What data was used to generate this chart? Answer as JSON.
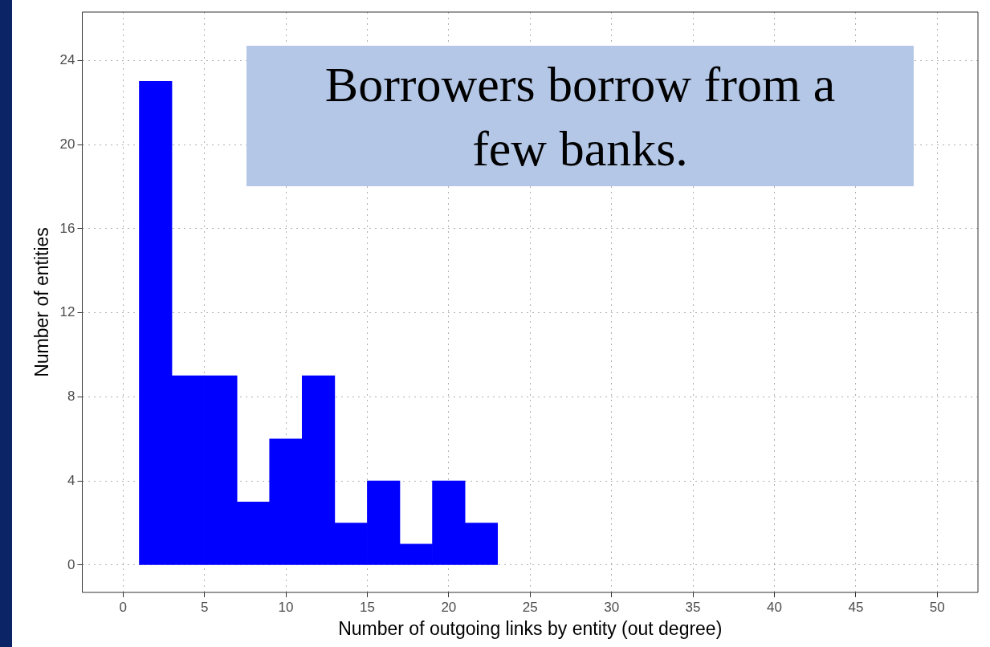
{
  "chart_data": {
    "type": "histogram",
    "xlabel": "Number of outgoing links by entity (out degree)",
    "ylabel": "Number of entities",
    "bins": [
      1,
      3,
      5,
      7,
      9,
      11,
      13,
      15,
      17,
      19,
      21,
      23
    ],
    "values": [
      23,
      9,
      9,
      3,
      6,
      9,
      2,
      4,
      1,
      4,
      2
    ],
    "color": "#0000ff",
    "xlim": [
      -2.5,
      52.5
    ],
    "xticks": [
      0,
      5,
      10,
      15,
      20,
      25,
      30,
      35,
      40,
      45,
      50
    ],
    "ylim": [
      -1.3,
      26.3
    ],
    "yticks": [
      0,
      4,
      8,
      12,
      16,
      20,
      24
    ],
    "grid": true,
    "annotations": [
      "Borrowers borrow from a few banks."
    ]
  }
}
